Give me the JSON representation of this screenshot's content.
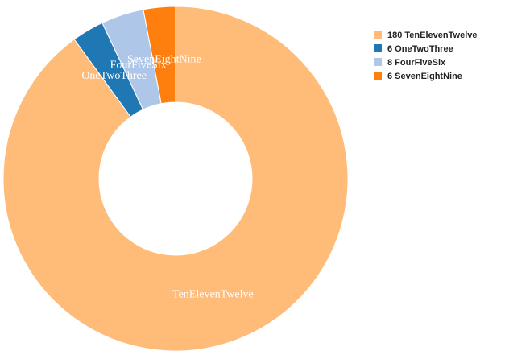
{
  "chart_data": {
    "type": "pie",
    "variant": "donut",
    "title": "",
    "categories": [
      "TenElevenTwelve",
      "OneTwoThree",
      "FourFiveSix",
      "SevenEightNine"
    ],
    "values": [
      180,
      6,
      8,
      6
    ],
    "colors": [
      "#ffbb78",
      "#1f77b4",
      "#aec7e8",
      "#ff7f0e"
    ],
    "legend": {
      "placement": "top-right",
      "entries": [
        "180 TenElevenTwelve",
        "6 OneTwoThree",
        "8 FourFiveSix",
        "6 SevenEightNine"
      ]
    }
  }
}
